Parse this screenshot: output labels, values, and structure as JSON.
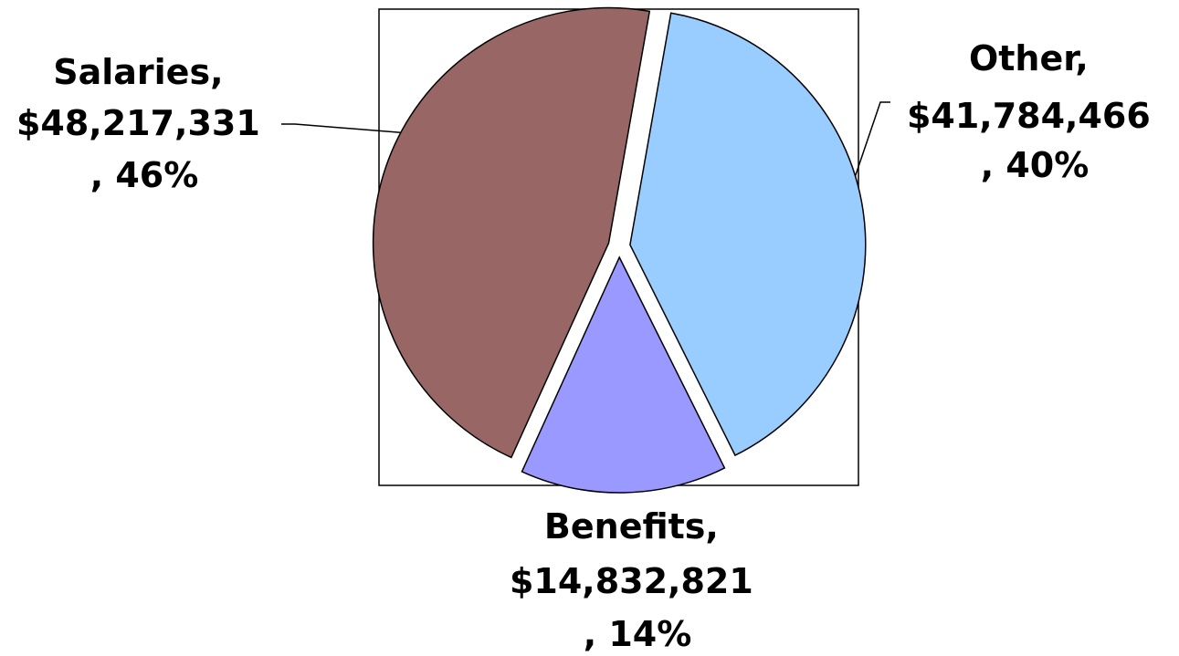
{
  "chart_data": {
    "type": "pie",
    "start_angle_deg": 10,
    "direction": "clockwise",
    "exploded": true,
    "slices": [
      {
        "category": "Other",
        "value": 41784466,
        "percent": 40,
        "color": "#99ccff",
        "label_lines": [
          "Other,",
          "$41,784,466",
          ", 40%"
        ]
      },
      {
        "category": "Benefits",
        "value": 14832821,
        "percent": 14,
        "color": "#9999ff",
        "label_lines": [
          "Benefits,",
          "$14,832,821",
          ", 14%"
        ]
      },
      {
        "category": "Salaries",
        "value": 48217331,
        "percent": 46,
        "color": "#996666",
        "label_lines": [
          "Salaries,",
          "$48,217,331",
          ", 46%"
        ]
      }
    ]
  }
}
